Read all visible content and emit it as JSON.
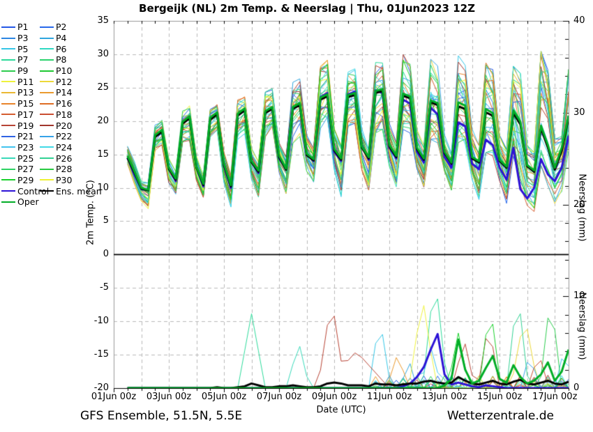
{
  "title": "Bergeijk  (NL)  2m Temp. & Neerslag | Thu, 01Jun2023 12Z",
  "footer": {
    "left": "GFS Ensemble, 51.5N, 5.5E",
    "right": "Wetterzentrale.de"
  },
  "axes": {
    "x_label": "Date (UTC)",
    "y_left_label": "2m Temp. (°C)",
    "y_right_label": "Neerslag (mm)",
    "x_tick_labels": [
      "01Jun 00z",
      "03Jun 00z",
      "05Jun 00z",
      "07Jun 00z",
      "09Jun 00z",
      "11Jun 00z",
      "13Jun 00z",
      "15Jun 00z",
      "17Jun 00z"
    ],
    "x_tick_days": [
      0,
      2,
      4,
      6,
      8,
      10,
      12,
      14,
      16
    ],
    "y_left_ticks": [
      35,
      30,
      25,
      20,
      15,
      10,
      5,
      0,
      -5,
      -10,
      -15,
      -20
    ],
    "y_right_ticks": [
      40,
      30,
      20,
      10,
      0
    ],
    "y_left_range": [
      -20,
      35
    ],
    "y_right_range": [
      0,
      40
    ],
    "x_range_days": [
      0,
      16.5
    ]
  },
  "legend": {
    "members": [
      {
        "label": "P1",
        "color": "#2457e6"
      },
      {
        "label": "P2",
        "color": "#2768ea"
      },
      {
        "label": "P3",
        "color": "#2c86e2"
      },
      {
        "label": "P4",
        "color": "#2fa6de"
      },
      {
        "label": "P5",
        "color": "#35c6e6"
      },
      {
        "label": "P6",
        "color": "#2fd8c2"
      },
      {
        "label": "P7",
        "color": "#2cda9a"
      },
      {
        "label": "P8",
        "color": "#2bd26e"
      },
      {
        "label": "P9",
        "color": "#2ccc4e"
      },
      {
        "label": "P10",
        "color": "#1ec832"
      },
      {
        "label": "P11",
        "color": "#eef23c"
      },
      {
        "label": "P12",
        "color": "#ecd839"
      },
      {
        "label": "P13",
        "color": "#eab832"
      },
      {
        "label": "P14",
        "color": "#ea9a2e"
      },
      {
        "label": "P15",
        "color": "#e8832a"
      },
      {
        "label": "P16",
        "color": "#de6d24"
      },
      {
        "label": "P17",
        "color": "#d55c2f"
      },
      {
        "label": "P18",
        "color": "#c94d31"
      },
      {
        "label": "P19",
        "color": "#b74334"
      },
      {
        "label": "P20",
        "color": "#a1352c"
      },
      {
        "label": "P21",
        "color": "#2f63e4"
      },
      {
        "label": "P22",
        "color": "#36a2e8"
      },
      {
        "label": "P23",
        "color": "#41c3ee"
      },
      {
        "label": "P24",
        "color": "#41d9e6"
      },
      {
        "label": "P25",
        "color": "#38d9b9"
      },
      {
        "label": "P26",
        "color": "#31d193"
      },
      {
        "label": "P27",
        "color": "#2dd262"
      },
      {
        "label": "P28",
        "color": "#27ca41"
      },
      {
        "label": "P29",
        "color": "#19d02b"
      },
      {
        "label": "P30",
        "color": "#eef232"
      }
    ],
    "extra": [
      {
        "label": "Control",
        "color": "#2c12d6"
      },
      {
        "label": "Ens. mean",
        "color": "#000000"
      },
      {
        "label": "Oper",
        "color": "#00ad26"
      }
    ]
  },
  "chart_data": {
    "type": "line",
    "title": "Bergeijk  (NL)  2m Temp. & Neerslag | Thu, 01Jun2023 12Z",
    "xlabel": "Date (UTC)",
    "ylabel_left": "2m Temp. (°C)",
    "ylabel_right": "Neerslag (mm)",
    "ylim_left": [
      -20,
      35
    ],
    "ylim_right": [
      0,
      40
    ],
    "x_start_day": 0.5,
    "x_step_days": 0.25,
    "grid": {
      "h_lines_temp": [
        30,
        25,
        20,
        15,
        10,
        5,
        -5,
        -10,
        -15
      ],
      "v_line_days": [
        1,
        2,
        3,
        4,
        5,
        6,
        7,
        8,
        9,
        10,
        11,
        12,
        13,
        14,
        15,
        16
      ]
    },
    "temp": {
      "ens_mean": [
        14.5,
        12.3,
        9.9,
        9.6,
        17.6,
        18.4,
        12.8,
        11.2,
        19.6,
        20.4,
        13.0,
        10.4,
        20.2,
        21.0,
        13.4,
        10.2,
        20.8,
        21.6,
        13.8,
        12.4,
        21.2,
        21.8,
        14.6,
        12.7,
        21.8,
        22.4,
        14.9,
        14.1,
        23.2,
        23.7,
        15.6,
        14.2,
        23.6,
        23.9,
        16.0,
        14.4,
        24.2,
        24.5,
        16.2,
        14.6,
        23.8,
        23.4,
        15.8,
        14.2,
        22.8,
        22.4,
        15.2,
        13.6,
        22.2,
        21.8,
        14.4,
        13.8,
        21.3,
        20.8,
        14.0,
        13.0,
        21.2,
        19.5,
        13.2,
        12.4,
        18.9,
        16.0,
        12.7,
        15.5,
        20.5
      ],
      "control": [
        14.5,
        12.0,
        9.8,
        9.7,
        17.8,
        18.6,
        12.9,
        11.0,
        19.8,
        20.6,
        13.2,
        10.2,
        20.4,
        21.2,
        13.2,
        10.0,
        21.0,
        21.8,
        14.0,
        12.2,
        21.4,
        22.0,
        14.4,
        12.9,
        22.0,
        22.6,
        15.1,
        14.0,
        23.6,
        24.2,
        15.4,
        14.0,
        24.0,
        24.4,
        16.4,
        14.2,
        24.6,
        24.2,
        16.0,
        14.4,
        23.2,
        22.6,
        15.4,
        13.8,
        22.0,
        21.0,
        14.6,
        13.0,
        19.8,
        19.2,
        13.6,
        12.8,
        17.2,
        16.4,
        13.0,
        11.2,
        16.0,
        9.8,
        8.4,
        10.0,
        14.3,
        12.0,
        11.0,
        13.0,
        17.8
      ],
      "oper": [
        14.8,
        12.5,
        10.0,
        9.7,
        17.9,
        18.7,
        13.0,
        11.4,
        19.9,
        20.7,
        13.2,
        10.6,
        20.5,
        21.3,
        13.6,
        10.4,
        21.1,
        21.9,
        14.0,
        12.6,
        21.5,
        22.1,
        14.8,
        12.9,
        22.1,
        22.7,
        15.1,
        14.3,
        23.5,
        24.0,
        15.8,
        14.4,
        23.9,
        24.2,
        16.2,
        14.6,
        24.5,
        24.8,
        16.4,
        14.8,
        24.1,
        23.7,
        16.0,
        14.4,
        23.1,
        22.7,
        15.4,
        13.8,
        22.8,
        22.3,
        14.6,
        14.0,
        21.8,
        21.2,
        14.2,
        13.2,
        21.6,
        19.9,
        13.4,
        12.6,
        19.3,
        16.4,
        13.0,
        16.0,
        20.8
      ],
      "env_max": [
        16.3,
        14.0,
        11.0,
        10.8,
        19.5,
        20.4,
        14.5,
        12.5,
        21.6,
        22.4,
        15.0,
        12.0,
        22.0,
        22.6,
        15.5,
        12.0,
        23.3,
        23.8,
        16.0,
        14.0,
        24.5,
        25.0,
        17.0,
        15.0,
        26.0,
        26.5,
        18.0,
        16.0,
        28.5,
        29.3,
        19.0,
        16.5,
        27.5,
        28.0,
        19.0,
        16.5,
        29.0,
        29.8,
        20.0,
        17.0,
        30.2,
        29.0,
        19.0,
        16.5,
        29.5,
        28.5,
        18.5,
        16.0,
        30.5,
        29.0,
        19.0,
        16.5,
        29.0,
        28.0,
        18.0,
        16.0,
        28.5,
        27.5,
        17.0,
        15.5,
        30.8,
        28.0,
        17.5,
        18.0,
        28.0
      ],
      "env_min": [
        13.5,
        10.5,
        8.0,
        6.8,
        15.5,
        16.2,
        10.5,
        9.0,
        16.8,
        17.0,
        11.0,
        8.5,
        17.5,
        18.5,
        10.5,
        7.0,
        17.0,
        18.0,
        11.0,
        8.5,
        17.5,
        18.5,
        12.0,
        9.0,
        16.5,
        17.5,
        12.0,
        10.5,
        18.5,
        19.5,
        12.5,
        8.5,
        19.0,
        19.5,
        12.5,
        9.5,
        18.0,
        18.5,
        13.0,
        10.0,
        18.5,
        18.0,
        12.5,
        10.0,
        17.0,
        16.5,
        12.0,
        9.5,
        16.5,
        16.0,
        11.0,
        8.0,
        15.0,
        14.5,
        10.5,
        7.5,
        14.5,
        9.0,
        6.5,
        6.0,
        13.0,
        10.0,
        7.0,
        9.0,
        14.5
      ]
    },
    "precip": {
      "ens_mean": [
        0,
        0,
        0,
        0,
        0,
        0,
        0,
        0,
        0,
        0,
        0,
        0,
        0,
        0.1,
        0,
        0,
        0.1,
        0.2,
        0.5,
        0.3,
        0.1,
        0.1,
        0.2,
        0.2,
        0.3,
        0.2,
        0.1,
        0.1,
        0.2,
        0.5,
        0.6,
        0.5,
        0.3,
        0.3,
        0.3,
        0.2,
        0.5,
        0.4,
        0.4,
        0.3,
        0.4,
        0.5,
        0.5,
        0.7,
        0.8,
        0.6,
        0.5,
        0.6,
        1.2,
        0.8,
        0.5,
        0.4,
        0.6,
        0.8,
        0.5,
        0.4,
        0.7,
        0.9,
        0.5,
        0.4,
        0.6,
        0.8,
        0.5,
        0.4,
        0.7
      ],
      "control": [
        0,
        0,
        0,
        0,
        0,
        0,
        0,
        0,
        0,
        0,
        0,
        0,
        0,
        0,
        0,
        0,
        0,
        0,
        0,
        0,
        0,
        0,
        0,
        0,
        0,
        0,
        0,
        0,
        0,
        0,
        0,
        0,
        0,
        0,
        0,
        0,
        0,
        0,
        0,
        0,
        0.2,
        0.5,
        1.2,
        2.3,
        4.2,
        5.9,
        1.5,
        0.4,
        0.6,
        0.4,
        0.2,
        0.1,
        0.3,
        0.2,
        0.1,
        0,
        0,
        0,
        0,
        0,
        0,
        0,
        0,
        0,
        0
      ],
      "oper": [
        0,
        0,
        0,
        0,
        0,
        0,
        0,
        0,
        0,
        0,
        0,
        0,
        0,
        0,
        0,
        0,
        0,
        0,
        0,
        0,
        0,
        0,
        0,
        0,
        0,
        0,
        0,
        0,
        0,
        0,
        0,
        0,
        0,
        0,
        0,
        0,
        0,
        0,
        0,
        0,
        0,
        0,
        0,
        0,
        0,
        0,
        0.3,
        1.0,
        5.3,
        2.0,
        0.5,
        0.8,
        2.2,
        3.5,
        1.0,
        0.6,
        2.5,
        1.2,
        0.5,
        0.8,
        1.5,
        2.8,
        0.8,
        1.8,
        4.2
      ],
      "member_spikes": [
        {
          "member": "P7",
          "day": 5.0,
          "peak_mm": 8.1,
          "width_days": 0.5
        },
        {
          "member": "P25",
          "day": 6.7,
          "peak_mm": 5.2,
          "width_days": 0.4
        },
        {
          "member": "P19",
          "day": 7.9,
          "peak_mm": 9.8,
          "width_days": 0.5
        },
        {
          "member": "P19",
          "day": 8.8,
          "peak_mm": 4.0,
          "width_days": 1.2
        },
        {
          "member": "P5",
          "day": 9.65,
          "peak_mm": 7.8,
          "width_days": 0.4
        },
        {
          "member": "P14",
          "day": 10.3,
          "peak_mm": 3.8,
          "width_days": 0.4
        },
        {
          "member": "P4",
          "day": 10.7,
          "peak_mm": 3.2,
          "width_days": 0.3
        },
        {
          "member": "P11",
          "day": 11.2,
          "peak_mm": 10.0,
          "width_days": 0.5
        },
        {
          "member": "P23",
          "day": 11.5,
          "peak_mm": 4.5,
          "width_days": 0.4
        },
        {
          "member": "P7",
          "day": 11.65,
          "peak_mm": 12.5,
          "width_days": 0.45
        },
        {
          "member": "P29",
          "day": 12.5,
          "peak_mm": 6.0,
          "width_days": 0.4
        },
        {
          "member": "P19",
          "day": 12.7,
          "peak_mm": 5.5,
          "width_days": 0.4
        },
        {
          "member": "P19",
          "day": 13.6,
          "peak_mm": 7.2,
          "width_days": 0.4
        },
        {
          "member": "P29",
          "day": 13.65,
          "peak_mm": 9.3,
          "width_days": 0.4
        },
        {
          "member": "P26",
          "day": 14.65,
          "peak_mm": 10.8,
          "width_days": 0.4
        },
        {
          "member": "P12",
          "day": 14.9,
          "peak_mm": 8.0,
          "width_days": 0.5
        },
        {
          "member": "P22",
          "day": 15.1,
          "peak_mm": 4.2,
          "width_days": 0.3
        },
        {
          "member": "P18",
          "day": 15.4,
          "peak_mm": 4.5,
          "width_days": 0.3
        },
        {
          "member": "P9",
          "day": 15.85,
          "peak_mm": 10.2,
          "width_days": 0.4
        },
        {
          "member": "P5",
          "day": 16.35,
          "peak_mm": 4.8,
          "width_days": 0.3
        }
      ]
    }
  }
}
